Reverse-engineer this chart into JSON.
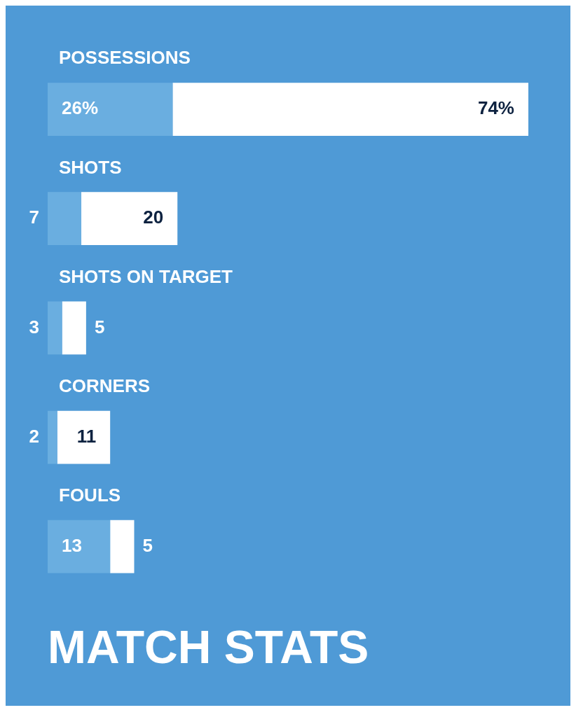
{
  "chart_data": {
    "type": "bar",
    "orientation": "horizontal",
    "stacked": true,
    "tick_labels": false,
    "title": "MATCH STATS",
    "categories": [
      "POSSESSIONS",
      "SHOTS",
      "SHOTS ON TARGET",
      "CORNERS",
      "FOULS"
    ],
    "series": [
      {
        "color": "#6aaee0",
        "values": [
          26,
          7,
          3,
          2,
          13
        ],
        "value_labels": [
          "26%",
          "7",
          "3",
          "2",
          "13"
        ]
      },
      {
        "color": "#ffffff",
        "values": [
          74,
          20,
          5,
          11,
          5
        ],
        "value_labels": [
          "74%",
          "20",
          "5",
          "11",
          "5"
        ]
      }
    ]
  }
}
